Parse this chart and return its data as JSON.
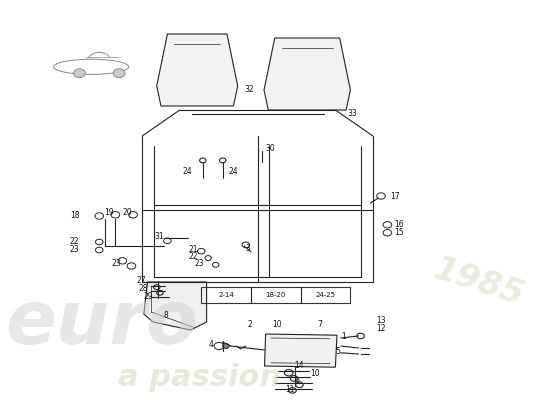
{
  "bg_color": "#ffffff",
  "fig_width": 5.5,
  "fig_height": 4.0,
  "dpi": 100,
  "line_color": "#222222",
  "label_color": "#111111"
}
